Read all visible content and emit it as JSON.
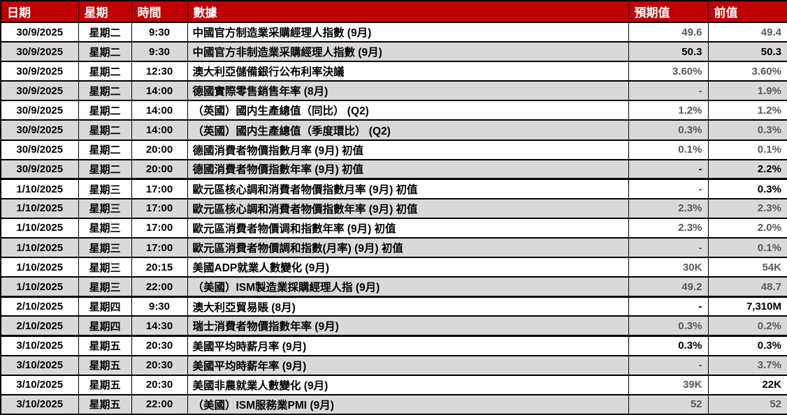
{
  "colors": {
    "header_bg": "#C00000",
    "header_text": "#FFFFFF",
    "row_shade": "#D9D9D9",
    "value_gray": "#595959",
    "value_black": "#000000",
    "border": "#000000"
  },
  "table": {
    "columns": [
      {
        "key": "date",
        "label": "日期"
      },
      {
        "key": "weekday",
        "label": "星期"
      },
      {
        "key": "time",
        "label": "時間"
      },
      {
        "key": "event",
        "label": "數據"
      },
      {
        "key": "expected",
        "label": "預期值"
      },
      {
        "key": "previous",
        "label": "前值"
      }
    ],
    "rows": [
      {
        "date": "30/9/2025",
        "weekday": "星期二",
        "time": "9:30",
        "event": "中國官方制造業采購經理人指數 (9月)",
        "expected": "49.6",
        "previous": "49.4",
        "expected_color": "gray",
        "previous_color": "gray",
        "group_end": false
      },
      {
        "date": "30/9/2025",
        "weekday": "星期二",
        "time": "9:30",
        "event": "中國官方非制造業采購經理人指數 (9月)",
        "expected": "50.3",
        "previous": "50.3",
        "expected_color": "black",
        "previous_color": "black",
        "group_end": false
      },
      {
        "date": "30/9/2025",
        "weekday": "星期二",
        "time": "12:30",
        "event": "澳大利亞儲備銀行公布利率決議",
        "expected": "3.60%",
        "previous": "3.60%",
        "expected_color": "gray",
        "previous_color": "gray",
        "group_end": false
      },
      {
        "date": "30/9/2025",
        "weekday": "星期二",
        "time": "14:00",
        "event": "德國實際零售銷售年率 (8月)",
        "expected": "-",
        "previous": "1.9%",
        "expected_color": "gray",
        "previous_color": "gray",
        "group_end": false
      },
      {
        "date": "30/9/2025",
        "weekday": "星期二",
        "time": "14:00",
        "event": "（英國）國内生產總值（同比） (Q2)",
        "expected": "1.2%",
        "previous": "1.2%",
        "expected_color": "gray",
        "previous_color": "gray",
        "group_end": false
      },
      {
        "date": "30/9/2025",
        "weekday": "星期二",
        "time": "14:00",
        "event": "（英國）國内生產總值（季度環比） (Q2)",
        "expected": "0.3%",
        "previous": "0.3%",
        "expected_color": "gray",
        "previous_color": "gray",
        "group_end": false
      },
      {
        "date": "30/9/2025",
        "weekday": "星期二",
        "time": "20:00",
        "event": "德國消費者物價指數月率 (9月) 初值",
        "expected": "0.1%",
        "previous": "0.1%",
        "expected_color": "gray",
        "previous_color": "gray",
        "group_end": false
      },
      {
        "date": "30/9/2025",
        "weekday": "星期二",
        "time": "20:00",
        "event": "德國消費者物價指數年率 (9月) 初值",
        "expected": "-",
        "previous": "2.2%",
        "expected_color": "black",
        "previous_color": "black",
        "group_end": true
      },
      {
        "date": "1/10/2025",
        "weekday": "星期三",
        "time": "17:00",
        "event": "歐元區核心調和消費者物價指數月率 (9月) 初值",
        "expected": "-",
        "previous": "0.3%",
        "expected_color": "gray",
        "previous_color": "black",
        "group_end": false
      },
      {
        "date": "1/10/2025",
        "weekday": "星期三",
        "time": "17:00",
        "event": "歐元區核心調和消費者物價指數年率 (9月) 初值",
        "expected": "2.3%",
        "previous": "2.3%",
        "expected_color": "gray",
        "previous_color": "gray",
        "group_end": false
      },
      {
        "date": "1/10/2025",
        "weekday": "星期三",
        "time": "17:00",
        "event": "歐元區消費者物價调和指數年率 (9月) 初值",
        "expected": "2.3%",
        "previous": "2.0%",
        "expected_color": "gray",
        "previous_color": "gray",
        "group_end": false
      },
      {
        "date": "1/10/2025",
        "weekday": "星期三",
        "time": "17:00",
        "event": "歐元區消費者物價調和指數(月率) (9月) 初值",
        "expected": "-",
        "previous": "0.1%",
        "expected_color": "gray",
        "previous_color": "gray",
        "group_end": false
      },
      {
        "date": "1/10/2025",
        "weekday": "星期三",
        "time": "20:15",
        "event": "美國ADP就業人數變化 (9月)",
        "expected": "30K",
        "previous": "54K",
        "expected_color": "gray",
        "previous_color": "gray",
        "group_end": false
      },
      {
        "date": "1/10/2025",
        "weekday": "星期三",
        "time": "22:00",
        "event": "（美國）ISM製造業採購經理人指 (9月)",
        "expected": "49.2",
        "previous": "48.7",
        "expected_color": "gray",
        "previous_color": "gray",
        "group_end": true
      },
      {
        "date": "2/10/2025",
        "weekday": "星期四",
        "time": "9:30",
        "event": "澳大利亞貿易賬 (8月)",
        "expected": "-",
        "previous": "7,310M",
        "expected_color": "black",
        "previous_color": "black",
        "group_end": false
      },
      {
        "date": "2/10/2025",
        "weekday": "星期四",
        "time": "14:30",
        "event": "瑞士消費者物價指數年率 (9月)",
        "expected": "0.3%",
        "previous": "0.2%",
        "expected_color": "gray",
        "previous_color": "gray",
        "group_end": true
      },
      {
        "date": "3/10/2025",
        "weekday": "星期五",
        "time": "20:30",
        "event": "美國平均時薪月率 (9月)",
        "expected": "0.3%",
        "previous": "0.3%",
        "expected_color": "black",
        "previous_color": "black",
        "group_end": false
      },
      {
        "date": "3/10/2025",
        "weekday": "星期五",
        "time": "20:30",
        "event": "美國平均時薪年率 (9月)",
        "expected": "-",
        "previous": "3.7%",
        "expected_color": "gray",
        "previous_color": "gray",
        "group_end": false
      },
      {
        "date": "3/10/2025",
        "weekday": "星期五",
        "time": "20:30",
        "event": "美國非農就業人數變化 (9月)",
        "expected": "39K",
        "previous": "22K",
        "expected_color": "gray",
        "previous_color": "black",
        "group_end": false
      },
      {
        "date": "3/10/2025",
        "weekday": "星期五",
        "time": "22:00",
        "event": "（美國）ISM服務業PMI (9月)",
        "expected": "52",
        "previous": "52",
        "expected_color": "gray",
        "previous_color": "gray",
        "group_end": false
      }
    ]
  }
}
